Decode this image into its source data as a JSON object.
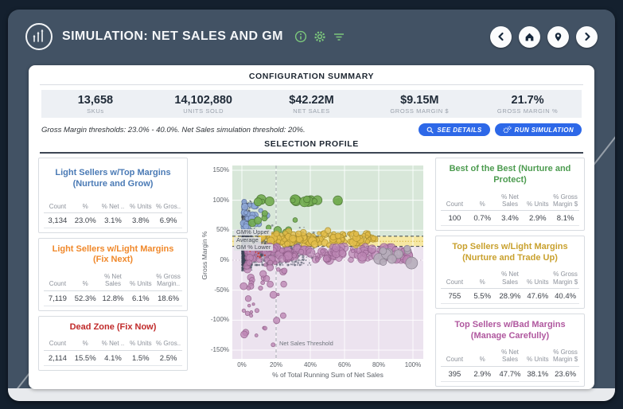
{
  "header": {
    "title": "SIMULATION: NET SALES AND GM",
    "icon_color": "#7cc87c",
    "nav": {
      "back": "back",
      "home": "home",
      "location": "location",
      "forward": "forward"
    }
  },
  "config": {
    "title": "CONFIGURATION SUMMARY",
    "metrics": [
      {
        "value": "13,658",
        "label": "SKUs"
      },
      {
        "value": "14,102,880",
        "label": "UNITS SOLD"
      },
      {
        "value": "$42.22M",
        "label": "NET SALES"
      },
      {
        "value": "$9.15M",
        "label": "GROSS MARGIN $"
      },
      {
        "value": "21.7%",
        "label": "GROSS MARGIN %"
      }
    ],
    "thresholds_text": "Gross Margin thresholds: 23.0% - 40.0%. Net Sales simulation threshold: 20%.",
    "see_details_label": "SEE DETAILS",
    "run_simulation_label": "RUN SIMULATION"
  },
  "selection_profile": {
    "title": "SELECTION PROFILE"
  },
  "quadrants": {
    "left": [
      {
        "title": "Light Sellers w/Top Margins (Nurture and Grow)",
        "color": "#4a7ab5",
        "headers": [
          "Count",
          "%",
          "% Net ..",
          "% Units",
          "% Gros.."
        ],
        "values": [
          "3,134",
          "23.0%",
          "3.1%",
          "3.8%",
          "6.9%"
        ]
      },
      {
        "title": "Light Sellers w/Light Margins (Fix Next)",
        "color": "#f0882a",
        "headers": [
          "Count",
          "%",
          "% Net Sales",
          "% Units",
          "% Gross Margin.."
        ],
        "values": [
          "7,119",
          "52.3%",
          "12.8%",
          "6.1%",
          "18.6%"
        ]
      },
      {
        "title": "Dead Zone (Fix Now)",
        "color": "#c02a2a",
        "headers": [
          "Count",
          "%",
          "% Net ..",
          "% Units",
          "% Gros.."
        ],
        "values": [
          "2,114",
          "15.5%",
          "4.1%",
          "1.5%",
          "2.5%"
        ]
      }
    ],
    "right": [
      {
        "title": "Best of the Best (Nurture and Protect)",
        "color": "#4c9b4f",
        "headers": [
          "Count",
          "%",
          "% Net Sales",
          "% Units",
          "% Gross Margin $"
        ],
        "values": [
          "100",
          "0.7%",
          "3.4%",
          "2.9%",
          "8.1%"
        ]
      },
      {
        "title": "Top Sellers w/Light Margins (Nurture and Trade Up)",
        "color": "#c9a12e",
        "headers": [
          "Count",
          "%",
          "% Net Sales",
          "% Units",
          "% Gross Margin $"
        ],
        "values": [
          "755",
          "5.5%",
          "28.9%",
          "47.6%",
          "40.4%"
        ]
      },
      {
        "title": "Top Sellers w/Bad Margins (Manage Carefully)",
        "color": "#b0589f",
        "headers": [
          "Count",
          "%",
          "% Net Sales",
          "% Units",
          "% Gross Margin $"
        ],
        "values": [
          "395",
          "2.9%",
          "47.7%",
          "38.1%",
          "23.6%"
        ]
      }
    ]
  },
  "chart_data": {
    "type": "scatter",
    "xlabel": "% of Total Running Sum of Net Sales",
    "ylabel": "Gross Margin %",
    "xlim": [
      0,
      100
    ],
    "ylim": [
      -150,
      150
    ],
    "x_ticks": {
      "values": [
        0,
        20,
        40,
        60,
        80,
        100
      ],
      "labels": [
        "0%",
        "20%",
        "40%",
        "60%",
        "80%",
        "100%"
      ]
    },
    "y_ticks": {
      "values": [
        150,
        100,
        50,
        0,
        -50,
        -100,
        -150
      ],
      "labels": [
        "150%",
        "100%",
        "50%",
        "0%",
        "-50%",
        "-100%",
        "-150%"
      ]
    },
    "thresholds": {
      "gm_upper_pct": 40,
      "gm_average_pct": 31.5,
      "gm_lower_pct": 23,
      "net_sales_pct": 20,
      "gm_upper_label": "GM% Upper",
      "gm_average_label": "Average",
      "gm_lower_label": "GM % Lower",
      "net_sales_label": "Net Sales Threshold"
    },
    "regions": {
      "above_color": "#d8e7d9",
      "band_color": "#f6e8a3",
      "below_color": "#ece3ef"
    },
    "grid_color": "rgba(255,255,255,0.85)",
    "clusters": [
      {
        "name": "dense-left-wall",
        "color": "#3e4557",
        "stroke": null,
        "alpha": 0.65,
        "r": [
          0.6,
          1.4
        ],
        "count": 520,
        "x": {
          "t": "p",
          "a": 0.2,
          "b": 6,
          "k": 2.2
        },
        "y": {
          "t": "u",
          "a": -18,
          "b": 100
        }
      },
      {
        "name": "dense-mass",
        "color": "#3e4557",
        "stroke": null,
        "alpha": 0.5,
        "r": [
          0.6,
          1.6
        ],
        "count": 1150,
        "x": {
          "t": "p",
          "a": 0.3,
          "b": 42,
          "k": 2.6
        },
        "y": {
          "t": "g",
          "m": 17,
          "s": 15,
          "lo": -8,
          "hi": 60
        }
      },
      {
        "name": "light-sellers-top-margins-blue",
        "color": "#8ea8d8",
        "stroke": "#5f739c",
        "alpha": 0.9,
        "r": [
          2.2,
          4.4
        ],
        "count": 30,
        "x": {
          "t": "p",
          "a": 0.8,
          "b": 16,
          "k": 1.8
        },
        "y": {
          "t": "u",
          "a": 55,
          "b": 100
        }
      },
      {
        "name": "best-of-best-green-top",
        "color": "#74ad52",
        "stroke": "#4e7a36",
        "alpha": 0.92,
        "r": [
          3,
          6.5
        ],
        "count": 16,
        "x": {
          "t": "u",
          "a": 5,
          "b": 63
        },
        "y": {
          "t": "u",
          "a": 97,
          "b": 102
        }
      },
      {
        "name": "best-of-best-green-mid",
        "color": "#74ad52",
        "stroke": "#4e7a36",
        "alpha": 0.9,
        "r": [
          2.5,
          5
        ],
        "count": 9,
        "x": {
          "t": "p",
          "a": 6,
          "b": 34,
          "k": 1.4
        },
        "y": {
          "t": "u",
          "a": 42,
          "b": 80
        }
      },
      {
        "name": "top-sellers-light-margins-gold",
        "color": "#e2bd4a",
        "stroke": "#a88c2c",
        "alpha": 0.8,
        "r": [
          2,
          5.2
        ],
        "count": 135,
        "x": {
          "t": "p",
          "a": 11,
          "b": 80,
          "k": 1.15
        },
        "y": {
          "t": "g",
          "m": 36,
          "s": 6,
          "lo": 25,
          "hi": 50
        }
      },
      {
        "name": "top-sellers-bad-margins-pink",
        "color": "#bd86b4",
        "stroke": "#8e5c86",
        "alpha": 0.72,
        "r": [
          2,
          5.8
        ],
        "count": 175,
        "x": {
          "t": "p",
          "a": 3,
          "b": 98,
          "k": 1.5
        },
        "y": {
          "t": "u",
          "a": 0,
          "b": 22
        }
      },
      {
        "name": "dead-zone-below-zero",
        "color": "#bd86b4",
        "stroke": "#8e5c86",
        "alpha": 0.8,
        "r": [
          1.5,
          4.5
        ],
        "count": 42,
        "x": {
          "t": "p",
          "a": 1,
          "b": 26,
          "k": 1.6
        },
        "y": {
          "t": "p",
          "a": -4,
          "b": -150,
          "k": 2.2
        }
      },
      {
        "name": "large-gray-right",
        "color": "#b6acba",
        "stroke": "#877e8d",
        "alpha": 0.9,
        "r": [
          4,
          8
        ],
        "count": 11,
        "x": {
          "t": "u",
          "a": 80,
          "b": 100
        },
        "y": {
          "t": "u",
          "a": -6,
          "b": 20
        }
      },
      {
        "name": "flagged-red-dots",
        "color": "#cf3b28",
        "stroke": null,
        "alpha": 0.95,
        "r": [
          0.8,
          1.3
        ],
        "count": 7,
        "x": {
          "t": "u",
          "a": 4,
          "b": 16
        },
        "y": {
          "t": "u",
          "a": 3,
          "b": 15
        }
      }
    ]
  }
}
